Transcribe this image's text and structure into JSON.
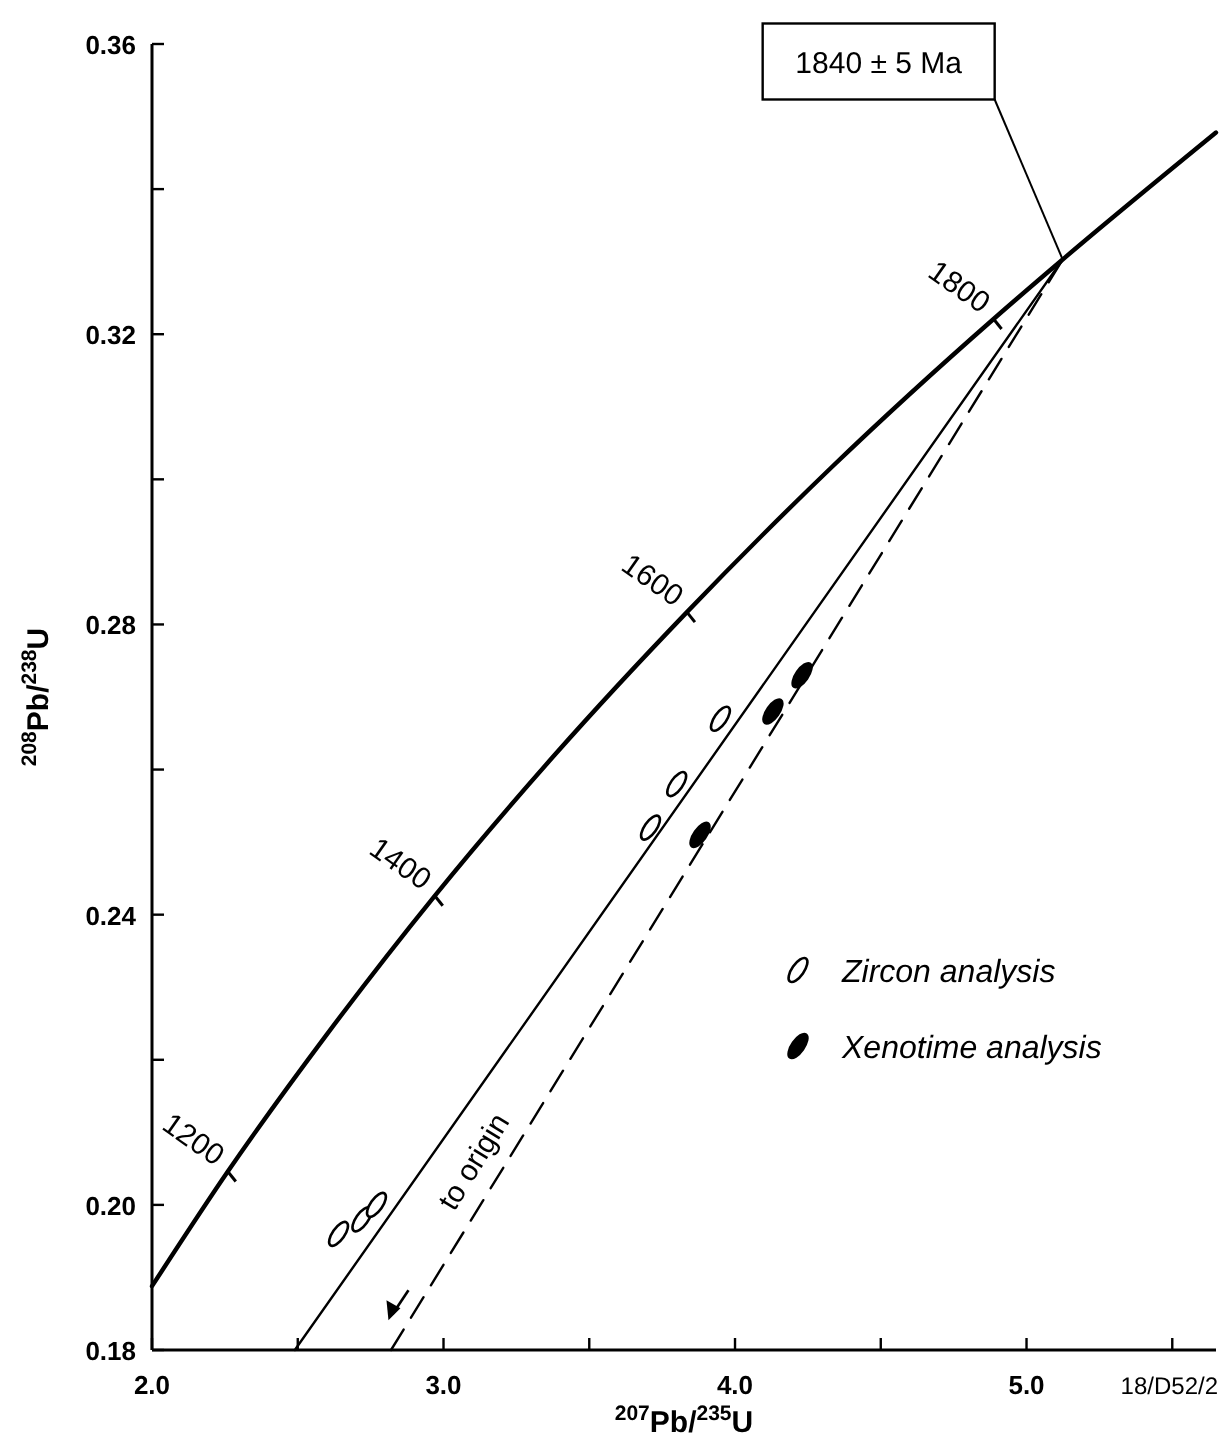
{
  "chart_data": {
    "type": "scatter",
    "xlabel": "$^{207}$Pb/$^{235}$U",
    "ylabel": "$^{208}$Pb/$^{238}$U",
    "xlim": [
      2.0,
      5.65
    ],
    "ylim": [
      0.18,
      0.36
    ],
    "xticks": [
      {
        "value": 2,
        "label": "2.0"
      },
      {
        "value": 2.5,
        "label": null
      },
      {
        "value": 3,
        "label": "3.0"
      },
      {
        "value": 3.5,
        "label": null
      },
      {
        "value": 4,
        "label": "4.0"
      },
      {
        "value": 4.5,
        "label": null
      },
      {
        "value": 5,
        "label": "5.0"
      },
      {
        "value": 5.5,
        "label": null
      }
    ],
    "yticks": [
      0.18,
      {
        "value": 0.2,
        "label": "0.20"
      },
      {
        "value": 0.22,
        "label": null
      },
      0.24,
      {
        "value": 0.26,
        "label": null
      },
      0.28,
      {
        "value": 0.3,
        "label": null
      },
      0.32,
      {
        "value": 0.34,
        "label": null
      },
      0.36
    ],
    "grid": false,
    "legend": "bottom right",
    "series": [
      {
        "type": "line",
        "color": "#000000",
        "marker": "none",
        "x": [
          2.0,
          2.26,
          2.598,
          2.97,
          3.381,
          3.835,
          4.335,
          4.887,
          5.124,
          5.65
        ],
        "values": [
          0.1888,
          0.2046,
          0.2234,
          0.2426,
          0.262,
          0.2817,
          0.3018,
          0.3221,
          0.3303,
          0.3478
        ]
      },
      {
        "type": "line",
        "color": "#000000",
        "marker": "none",
        "line_style": "solid",
        "x": [
          2.49,
          5.124
        ],
        "values": [
          0.18,
          0.3303
        ]
      },
      {
        "type": "line",
        "color": "#000000",
        "marker": "none",
        "line_style": "dashed",
        "x": [
          2.82,
          5.124
        ],
        "values": [
          0.18,
          0.3303
        ]
      },
      {
        "name": "Zircon analysis",
        "color": "#ffffff",
        "marker": "circle",
        "x": [
          2.64,
          2.72,
          2.77,
          3.71,
          3.8,
          3.95
        ],
        "values": [
          0.196,
          0.198,
          0.2,
          0.252,
          0.258,
          0.267
        ]
      },
      {
        "name": "Xenotime analysis",
        "color": "#000000",
        "marker": "circle",
        "x": [
          3.88,
          4.13,
          4.23
        ],
        "values": [
          0.251,
          0.268,
          0.273
        ]
      }
    ],
    "annotations": [
      {
        "text": "1840 ± 5 Ma",
        "x": 5.124,
        "y": 0.3303
      },
      {
        "text": "1200",
        "x": 2.26,
        "y": 0.2046
      },
      {
        "text": "1400",
        "x": 2.97,
        "y": 0.2426
      },
      {
        "text": "1600",
        "x": 3.835,
        "y": 0.2817
      },
      {
        "text": "1800",
        "x": 4.887,
        "y": 0.3221
      },
      "to origin",
      "18/D52/2"
    ]
  }
}
